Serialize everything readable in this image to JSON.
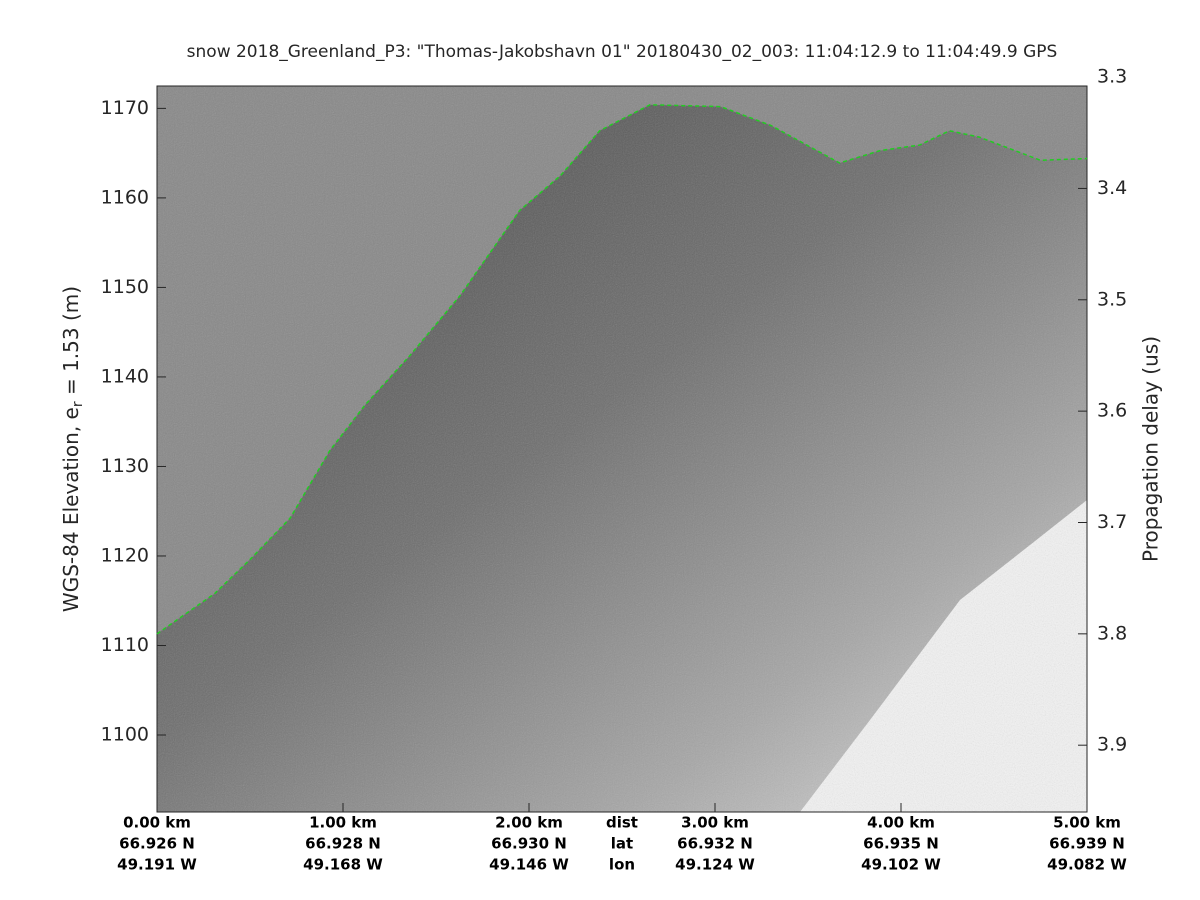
{
  "chart_data": {
    "type": "line",
    "title": "snow 2018_Greenland_P3: \"Thomas-Jakobshavn 01\"  20180430_02_003: 11:04:12.9 to 11:04:49.9 GPS",
    "ylabel": [
      "WGS-84 Elevation, e",
      "r",
      " = 1.53 (m)"
    ],
    "y2label": "Propagation delay (us)",
    "xlim": [
      0,
      5
    ],
    "xticks": [
      {
        "value": 0,
        "label": "0.00 km"
      },
      {
        "value": 1,
        "label": "1.00 km"
      },
      {
        "value": 2,
        "label": "2.00 km"
      },
      {
        "value": 3,
        "label": "3.00 km"
      },
      {
        "value": 4,
        "label": "4.00 km"
      },
      {
        "value": 5,
        "label": "5.00 km"
      }
    ],
    "lat_labels": [
      "66.926 N",
      "66.928 N",
      "66.930 N",
      "66.932 N",
      "66.935 N",
      "66.939 N"
    ],
    "lon_labels": [
      "49.191 W",
      "49.168 W",
      "49.146 W",
      "49.124 W",
      "49.102 W",
      "49.082 W"
    ],
    "row_names": [
      "dist",
      "lat",
      "lon"
    ],
    "ylim": [
      1091.4,
      1172.5
    ],
    "yticks": [
      1100,
      1110,
      1120,
      1130,
      1140,
      1150,
      1160,
      1170
    ],
    "y2lim": [
      3.308,
      3.96
    ],
    "y2ticks": [
      3.3,
      3.4,
      3.5,
      3.6,
      3.7,
      3.8,
      3.9
    ],
    "series": [
      {
        "color": "#22cc22",
        "x": [
          0,
          0.31,
          0.5,
          0.715,
          0.93,
          1.12,
          1.36,
          1.63,
          1.95,
          2.17,
          2.38,
          2.65,
          3.03,
          3.3,
          3.67,
          3.89,
          4.1,
          4.26,
          4.42,
          4.75,
          5
        ],
        "values": [
          1111.3,
          1115.8,
          1119.6,
          1124.2,
          1131.8,
          1136.9,
          1142.4,
          1149.1,
          1158.6,
          1162.5,
          1167.5,
          1170.4,
          1170.2,
          1168.1,
          1163.9,
          1165.3,
          1165.9,
          1167.5,
          1166.8,
          1164.2,
          1164.4
        ]
      }
    ]
  }
}
